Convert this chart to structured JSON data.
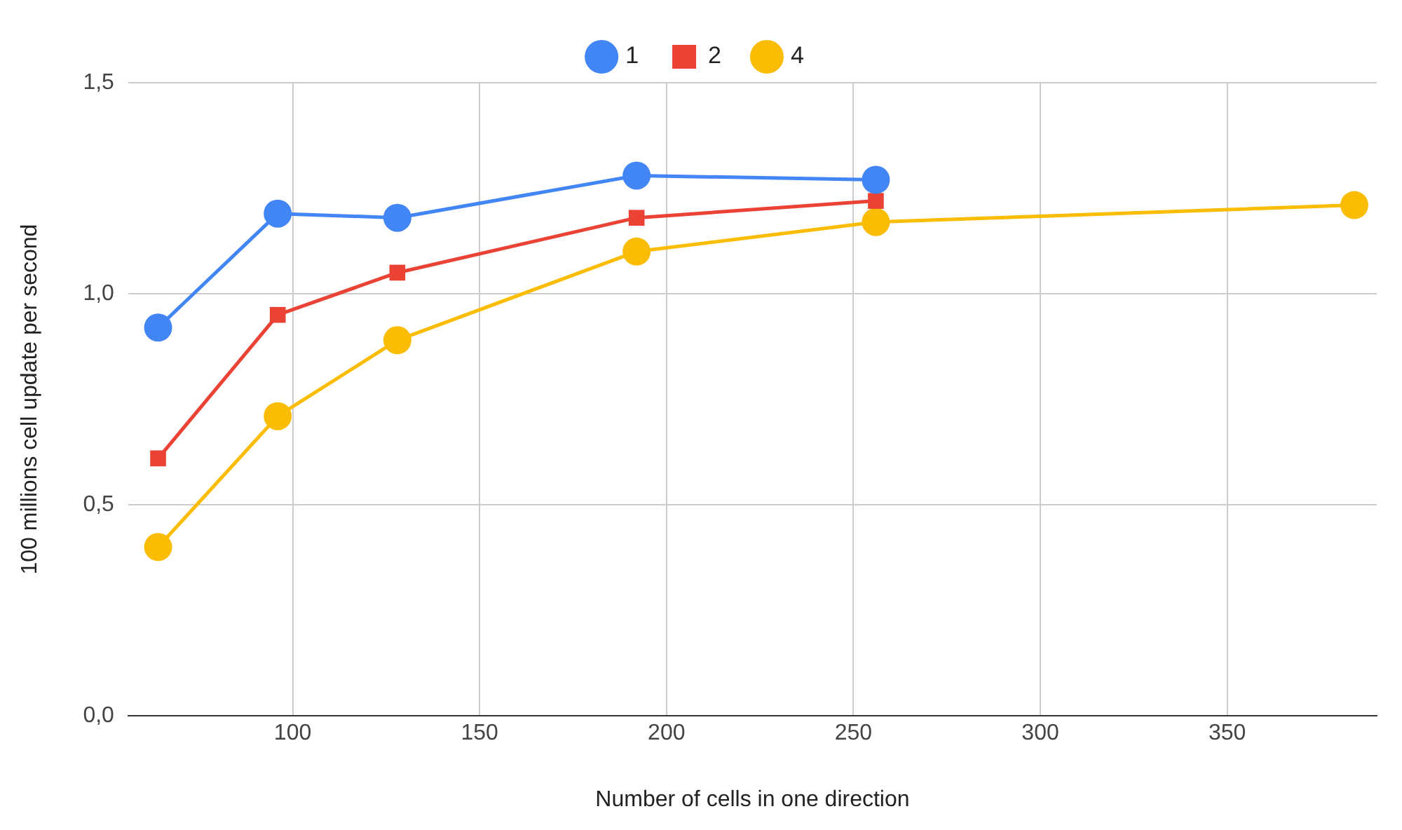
{
  "chart_data": {
    "type": "line",
    "xlabel": "Number of cells in one direction",
    "ylabel": "100 millions cell update per second",
    "xlim": [
      56,
      390
    ],
    "xticks": [
      100,
      150,
      200,
      250,
      300,
      350
    ],
    "ylim": [
      0,
      1.5
    ],
    "yticks": [
      {
        "value": 0,
        "label": "0,0"
      },
      {
        "value": 0.5,
        "label": "0,5"
      },
      {
        "value": 1,
        "label": "1,0"
      },
      {
        "value": 1.5,
        "label": "1,5"
      }
    ],
    "grid": true,
    "legend": "top",
    "line_style": "solid",
    "series": [
      {
        "name": "1",
        "color": "#4285f4",
        "marker": "circle",
        "x": [
          64,
          96,
          128,
          192,
          256
        ],
        "values": [
          0.92,
          1.19,
          1.18,
          1.28,
          1.27
        ]
      },
      {
        "name": "2",
        "color": "#ea4335",
        "marker": "square",
        "x": [
          64,
          96,
          128,
          192,
          256
        ],
        "values": [
          0.61,
          0.95,
          1.05,
          1.18,
          1.22
        ]
      },
      {
        "name": "4",
        "color": "#fbbc04",
        "marker": "circle",
        "x": [
          64,
          96,
          128,
          192,
          256,
          384
        ],
        "values": [
          0.4,
          0.71,
          0.89,
          1.1,
          1.17,
          1.21
        ]
      }
    ]
  }
}
